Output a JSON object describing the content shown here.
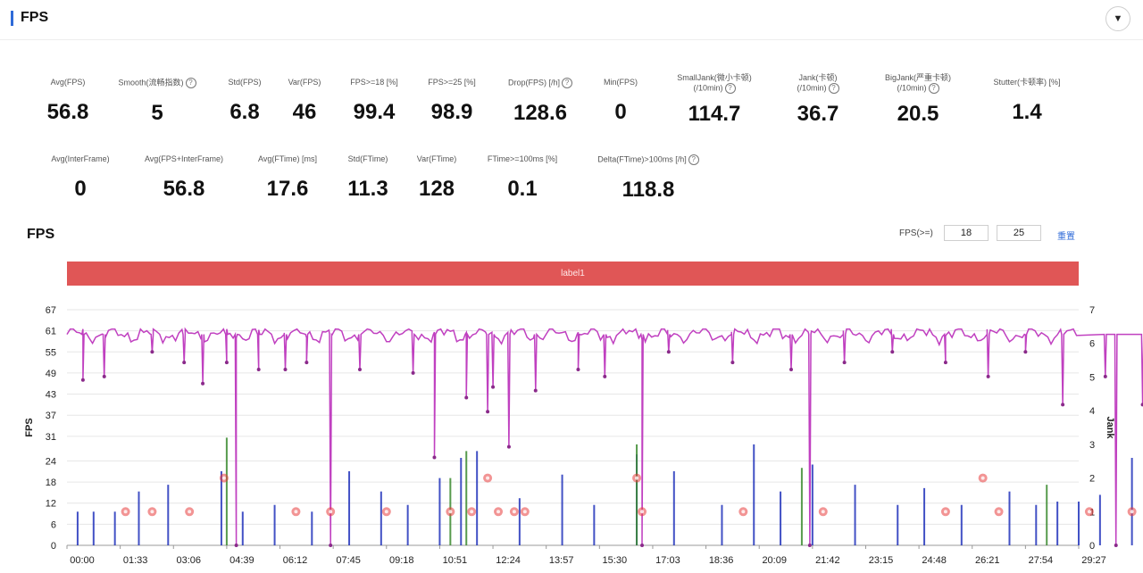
{
  "header": {
    "title": "FPS",
    "collapse_icon": "chevron-down-icon"
  },
  "metrics_row1": [
    {
      "label": "Avg(FPS)",
      "value": "56.8",
      "help": false
    },
    {
      "label": "Smooth(流畅指数)",
      "value": "5",
      "help": true
    },
    {
      "label": "Std(FPS)",
      "value": "6.8",
      "help": false
    },
    {
      "label": "Var(FPS)",
      "value": "46",
      "help": false
    },
    {
      "label": "FPS>=18 [%]",
      "value": "99.4",
      "help": false
    },
    {
      "label": "FPS>=25 [%]",
      "value": "98.9",
      "help": false
    },
    {
      "label": "Drop(FPS) [/h]",
      "value": "128.6",
      "help": true
    },
    {
      "label": "Min(FPS)",
      "value": "0",
      "help": false
    },
    {
      "label": "SmallJank(微小卡顿)",
      "label2": "(/10min)",
      "value": "114.7",
      "help": true
    },
    {
      "label": "Jank(卡顿)",
      "label2": "(/10min)",
      "value": "36.7",
      "help": true
    },
    {
      "label": "BigJank(严重卡顿)",
      "label2": "(/10min)",
      "value": "20.5",
      "help": true
    },
    {
      "label": "Stutter(卡顿率) [%]",
      "value": "1.4",
      "help": false
    }
  ],
  "metrics_row2": [
    {
      "label": "Avg(InterFrame)",
      "value": "0",
      "help": false
    },
    {
      "label": "Avg(FPS+InterFrame)",
      "value": "56.8",
      "help": false
    },
    {
      "label": "Avg(FTime) [ms]",
      "value": "17.6",
      "help": false
    },
    {
      "label": "Std(FTime)",
      "value": "11.3",
      "help": false
    },
    {
      "label": "Var(FTime)",
      "value": "128",
      "help": false
    },
    {
      "label": "FTime>=100ms [%]",
      "value": "0.1",
      "help": false
    },
    {
      "label": "Delta(FTime)>100ms [/h]",
      "value": "118.8",
      "help": true
    }
  ],
  "section": {
    "title": "FPS"
  },
  "threshold": {
    "label": "FPS(>=)",
    "value1": "18",
    "value2": "25",
    "reset_label": "重置"
  },
  "label_bar": {
    "text": "label1"
  },
  "colors": {
    "fps": "#c040c0",
    "jank": "#e83c3c",
    "small_jank": "#2233bb",
    "big_jank": "#3a8a2e",
    "label_bar": "#e05656",
    "accent": "#2f6bd8"
  },
  "chart_data": {
    "type": "line",
    "ylabel": "FPS",
    "y2label": "Jank",
    "yticks": [
      0,
      6,
      12,
      18,
      24,
      31,
      37,
      43,
      49,
      55,
      61,
      67
    ],
    "y2ticks": [
      0,
      1,
      2,
      3,
      4,
      5,
      6,
      7
    ],
    "ylim": [
      0,
      67
    ],
    "y2lim": [
      0,
      7
    ],
    "xticks": [
      "00:00",
      "01:33",
      "03:06",
      "04:39",
      "06:12",
      "07:45",
      "09:18",
      "10:51",
      "12:24",
      "13:57",
      "15:30",
      "17:03",
      "18:36",
      "20:09",
      "21:42",
      "23:15",
      "24:48",
      "26:21",
      "27:54",
      "29:27"
    ],
    "grid": true,
    "series": [
      {
        "name": "FPS",
        "axis": "left",
        "baseline": 60,
        "color": "#c040c0",
        "dips": [
          [
            0.3,
            47
          ],
          [
            0.7,
            48
          ],
          [
            1.6,
            55
          ],
          [
            2.2,
            52
          ],
          [
            2.55,
            46
          ],
          [
            3.0,
            52
          ],
          [
            3.18,
            0
          ],
          [
            3.6,
            50
          ],
          [
            4.1,
            50
          ],
          [
            4.5,
            52
          ],
          [
            4.95,
            0
          ],
          [
            5.5,
            50
          ],
          [
            6.5,
            49
          ],
          [
            6.9,
            25
          ],
          [
            7.5,
            42
          ],
          [
            7.9,
            38
          ],
          [
            8.0,
            45
          ],
          [
            8.3,
            28
          ],
          [
            8.8,
            44
          ],
          [
            9.6,
            50
          ],
          [
            10.1,
            48
          ],
          [
            10.8,
            0
          ],
          [
            11.3,
            55
          ],
          [
            12.5,
            52
          ],
          [
            13.6,
            50
          ],
          [
            13.95,
            0
          ],
          [
            14.6,
            52
          ],
          [
            15.5,
            55
          ],
          [
            16.5,
            52
          ],
          [
            17.3,
            48
          ],
          [
            18.0,
            55
          ],
          [
            18.7,
            40
          ],
          [
            19.5,
            48
          ],
          [
            19.7,
            0
          ],
          [
            20.2,
            40
          ],
          [
            20.8,
            45
          ],
          [
            21.0,
            0
          ],
          [
            21.6,
            50
          ],
          [
            22.4,
            45
          ],
          [
            23.0,
            40
          ],
          [
            23.6,
            45
          ],
          [
            23.95,
            38
          ],
          [
            24.5,
            46
          ],
          [
            24.9,
            30
          ],
          [
            25.1,
            45
          ],
          [
            25.4,
            28
          ],
          [
            25.6,
            40
          ],
          [
            26.2,
            40
          ],
          [
            26.9,
            50
          ],
          [
            27.4,
            42
          ],
          [
            27.7,
            0
          ],
          [
            28.3,
            45
          ],
          [
            29.0,
            44
          ],
          [
            29.8,
            50
          ],
          [
            30.5,
            52
          ],
          [
            31.2,
            45
          ],
          [
            31.8,
            50
          ],
          [
            32.4,
            52
          ],
          [
            32.95,
            52
          ]
        ]
      },
      {
        "name": "Jank",
        "axis": "right",
        "color": "#e83c3c",
        "points": [
          [
            1.1,
            1
          ],
          [
            1.6,
            1
          ],
          [
            2.3,
            1
          ],
          [
            2.95,
            2
          ],
          [
            4.3,
            1
          ],
          [
            4.95,
            1
          ],
          [
            6.0,
            1
          ],
          [
            7.2,
            1
          ],
          [
            7.6,
            1
          ],
          [
            7.9,
            2
          ],
          [
            8.1,
            1
          ],
          [
            8.4,
            1
          ],
          [
            8.6,
            1
          ],
          [
            10.7,
            2
          ],
          [
            10.8,
            1
          ],
          [
            12.7,
            1
          ],
          [
            14.2,
            1
          ],
          [
            16.5,
            1
          ],
          [
            17.2,
            2
          ],
          [
            17.5,
            1
          ],
          [
            19.2,
            1
          ],
          [
            20.0,
            1
          ],
          [
            20.3,
            3
          ],
          [
            20.5,
            1
          ],
          [
            22.5,
            1
          ],
          [
            23.1,
            1
          ],
          [
            24.1,
            1
          ],
          [
            24.7,
            2
          ],
          [
            24.8,
            1
          ],
          [
            25.0,
            2
          ],
          [
            25.2,
            1
          ],
          [
            25.5,
            1
          ],
          [
            26.3,
            1
          ],
          [
            28.0,
            1
          ],
          [
            28.5,
            1
          ]
        ]
      },
      {
        "name": "SmallJank",
        "axis": "right",
        "color": "#2233bb",
        "spikes": [
          [
            0.2,
            1
          ],
          [
            0.5,
            1
          ],
          [
            0.9,
            1
          ],
          [
            1.35,
            1.6
          ],
          [
            1.9,
            1.8
          ],
          [
            2.9,
            2.2
          ],
          [
            3.3,
            1
          ],
          [
            3.9,
            1.2
          ],
          [
            4.6,
            1
          ],
          [
            5.3,
            2.2
          ],
          [
            5.9,
            1.6
          ],
          [
            6.4,
            1.2
          ],
          [
            7.0,
            2
          ],
          [
            7.4,
            2.6
          ],
          [
            7.7,
            2.8
          ],
          [
            8.5,
            1.4
          ],
          [
            9.3,
            2.1
          ],
          [
            9.9,
            1.2
          ],
          [
            10.7,
            2.7
          ],
          [
            11.4,
            2.2
          ],
          [
            12.3,
            1.2
          ],
          [
            12.9,
            3
          ],
          [
            13.4,
            1.6
          ],
          [
            14.0,
            2.4
          ],
          [
            14.8,
            1.8
          ],
          [
            15.6,
            1.2
          ],
          [
            16.1,
            1.7
          ],
          [
            16.8,
            1.2
          ],
          [
            17.7,
            1.6
          ],
          [
            18.2,
            1.2
          ],
          [
            18.6,
            1.3
          ],
          [
            19.0,
            1.3
          ],
          [
            19.4,
            1.5
          ],
          [
            20.0,
            2.6
          ],
          [
            20.7,
            2.7
          ],
          [
            21.4,
            1.5
          ],
          [
            22.0,
            1.2
          ],
          [
            22.3,
            2.9
          ],
          [
            22.9,
            2
          ],
          [
            23.2,
            2.4
          ],
          [
            23.8,
            2.6
          ],
          [
            24.3,
            2.2
          ],
          [
            24.7,
            3.1
          ],
          [
            25.3,
            1.6
          ],
          [
            25.9,
            2.5
          ],
          [
            26.5,
            1.4
          ],
          [
            27.1,
            2.1
          ],
          [
            27.8,
            2.7
          ],
          [
            28.3,
            1.8
          ],
          [
            28.9,
            1.6
          ],
          [
            29.5,
            1.2
          ],
          [
            30.3,
            1
          ],
          [
            31.0,
            1
          ]
        ]
      },
      {
        "name": "BigJank",
        "axis": "right",
        "color": "#3a8a2e",
        "spikes": [
          [
            3.0,
            3.2
          ],
          [
            7.2,
            2
          ],
          [
            7.5,
            2.8
          ],
          [
            10.7,
            3
          ],
          [
            13.8,
            2.3
          ],
          [
            18.4,
            1.8
          ],
          [
            20.3,
            2.9
          ],
          [
            22.8,
            1.5
          ],
          [
            24.6,
            3
          ],
          [
            25.1,
            2.4
          ],
          [
            26.0,
            1.4
          ]
        ]
      }
    ]
  }
}
